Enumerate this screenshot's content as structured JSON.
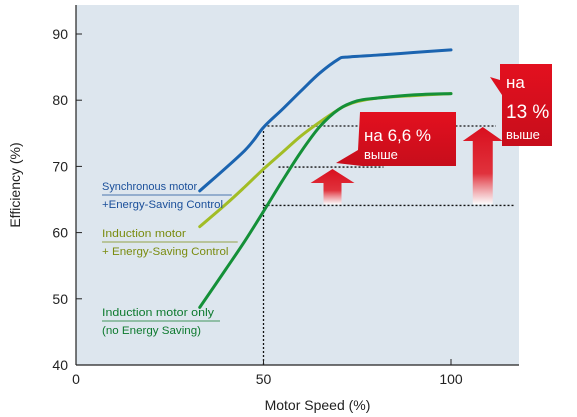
{
  "chart_data": {
    "type": "line",
    "title": "",
    "xlabel": "Motor Speed (%)",
    "ylabel": "Efficiency (%)",
    "xlim": [
      0,
      118
    ],
    "ylim": [
      40,
      95
    ],
    "x_ticks": [
      "0",
      "50",
      "100"
    ],
    "y_ticks": [
      "40",
      "50",
      "60",
      "70",
      "80",
      "90"
    ],
    "grid": false,
    "background": "#dde6ee",
    "series": [
      {
        "label_lines": [
          "Synchronous motor",
          "+Energy-Saving Control"
        ],
        "color": "#1b64b0",
        "label_color": "#1a4f9a",
        "x": [
          33,
          45,
          50,
          55,
          60,
          65,
          70,
          72,
          80,
          90,
          100
        ],
        "y": [
          66.3,
          72.4,
          75.9,
          78.6,
          81.4,
          84.1,
          86.2,
          86.5,
          86.8,
          87.2,
          87.6
        ]
      },
      {
        "label_lines": [
          "Induction motor",
          "+ Energy-Saving Control"
        ],
        "color": "#a2bd25",
        "label_color": "#7a8c10",
        "x": [
          33,
          40,
          45,
          50,
          55,
          60,
          65,
          70,
          72,
          75,
          80,
          90,
          100
        ],
        "y": [
          60.9,
          64.3,
          66.9,
          69.6,
          72.1,
          74.6,
          76.7,
          78.6,
          79.2,
          79.8,
          80.3,
          80.7,
          81.0
        ]
      },
      {
        "label_lines": [
          "Induction motor only",
          "(no Energy Saving)"
        ],
        "color": "#149038",
        "label_color": "#0e7a2f",
        "x": [
          33,
          40,
          45,
          50,
          55,
          60,
          65,
          70,
          75,
          80,
          90,
          100
        ],
        "y": [
          48.7,
          54.5,
          58.7,
          63.2,
          67.8,
          72.2,
          76.0,
          78.6,
          79.9,
          80.3,
          80.8,
          81.0
        ]
      }
    ],
    "reference_lines": [
      {
        "y": 76.1,
        "x_from": 50,
        "x_to": 112
      },
      {
        "y": 69.9,
        "x_from": 54,
        "x_to": 82
      },
      {
        "y": 64.1,
        "x_from": 50,
        "x_to": 117
      },
      {
        "x": 50,
        "y_from": 40,
        "y_to": 76.1
      }
    ],
    "annotations": [
      {
        "lines": [
          "на 6,6 %",
          "выше"
        ],
        "arrow_x": 70,
        "arrow_from_y": 64.1,
        "arrow_to_y": 69.9
      },
      {
        "lines": [
          "на",
          "13 %",
          "выше"
        ],
        "arrow_x": 109,
        "arrow_from_y": 64.1,
        "arrow_to_y": 76.1
      }
    ]
  }
}
